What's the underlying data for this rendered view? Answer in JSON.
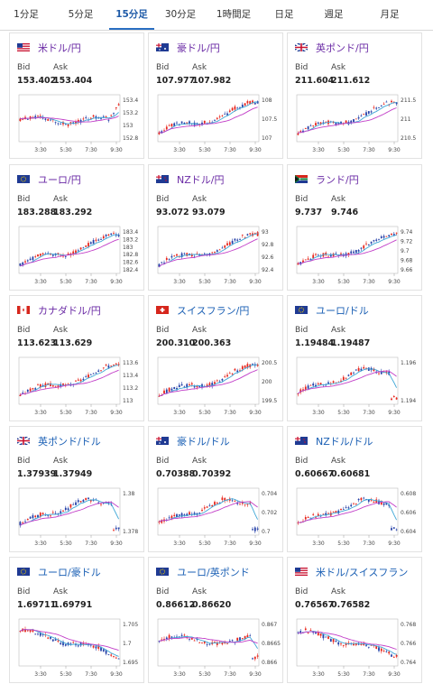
{
  "tabs": [
    {
      "label": "1分足",
      "active": false
    },
    {
      "label": "5分足",
      "active": false
    },
    {
      "label": "15分足",
      "active": true
    },
    {
      "label": "30分足",
      "active": false
    },
    {
      "label": "1時間足",
      "active": false
    },
    {
      "label": "日足",
      "active": false
    },
    {
      "label": "週足",
      "active": false
    },
    {
      "label": "月足",
      "active": false
    }
  ],
  "bid_label": "Bid",
  "ask_label": "Ask",
  "x_ticks": [
    "3:30",
    "5:30",
    "7:30",
    "9:30"
  ],
  "colors": {
    "up": "#e8261c",
    "down": "#2540a8",
    "ma_fast": "#3fa7d6",
    "ma_slow": "#c23fc8",
    "accent": "#1a5fb4"
  },
  "cards": [
    {
      "pair": "米ドル/円",
      "flag": "us",
      "bid": "153.402",
      "ask": "153.404",
      "y_ticks": [
        "153.4",
        "153.2",
        "153",
        "152.8"
      ],
      "trend": "up_spike",
      "purple": true
    },
    {
      "pair": "豪ドル/円",
      "flag": "au",
      "bid": "107.977",
      "ask": "107.982",
      "y_ticks": [
        "108",
        "107.5",
        "107"
      ],
      "trend": "up",
      "purple": true
    },
    {
      "pair": "英ポンド/円",
      "flag": "gb",
      "bid": "211.604",
      "ask": "211.612",
      "y_ticks": [
        "211.5",
        "211",
        "210.5"
      ],
      "trend": "up",
      "purple": true
    },
    {
      "pair": "ユーロ/円",
      "flag": "eu",
      "bid": "183.288",
      "ask": "183.292",
      "y_ticks": [
        "183.4",
        "183.2",
        "183",
        "182.8",
        "182.6",
        "182.4"
      ],
      "trend": "up",
      "purple": true
    },
    {
      "pair": "NZドル/円",
      "flag": "nz",
      "bid": "93.072",
      "ask": "93.079",
      "y_ticks": [
        "93",
        "92.8",
        "92.6",
        "92.4"
      ],
      "trend": "up",
      "purple": true
    },
    {
      "pair": "ランド/円",
      "flag": "za",
      "bid": "9.737",
      "ask": "9.746",
      "y_ticks": [
        "9.74",
        "9.72",
        "9.7",
        "9.68",
        "9.66"
      ],
      "trend": "up",
      "purple": true
    },
    {
      "pair": "カナダドル/円",
      "flag": "ca",
      "bid": "113.623",
      "ask": "113.629",
      "y_ticks": [
        "113.6",
        "113.4",
        "113.2",
        "113"
      ],
      "trend": "up",
      "purple": true
    },
    {
      "pair": "スイスフラン/円",
      "flag": "ch",
      "bid": "200.310",
      "ask": "200.363",
      "y_ticks": [
        "200.5",
        "200",
        "199.5"
      ],
      "trend": "up",
      "purple": false
    },
    {
      "pair": "ユーロ/ドル",
      "flag": "eu",
      "bid": "1.19484",
      "ask": "1.19487",
      "y_ticks": [
        "1.196",
        "1.194"
      ],
      "trend": "up_drop",
      "purple": false
    },
    {
      "pair": "英ポンド/ドル",
      "flag": "gb",
      "bid": "1.37939",
      "ask": "1.37949",
      "y_ticks": [
        "1.38",
        "1.378"
      ],
      "trend": "up_drop",
      "purple": false
    },
    {
      "pair": "豪ドル/ドル",
      "flag": "au",
      "bid": "0.70388",
      "ask": "0.70392",
      "y_ticks": [
        "0.704",
        "0.702",
        "0.7"
      ],
      "trend": "up_drop",
      "purple": false
    },
    {
      "pair": "NZドル/ドル",
      "flag": "nz",
      "bid": "0.60667",
      "ask": "0.60681",
      "y_ticks": [
        "0.608",
        "0.606",
        "0.604"
      ],
      "trend": "up_drop",
      "purple": false
    },
    {
      "pair": "ユーロ/豪ドル",
      "flag": "eu",
      "bid": "1.69711",
      "ask": "1.69791",
      "y_ticks": [
        "1.705",
        "1.7",
        "1.695"
      ],
      "trend": "down",
      "purple": false
    },
    {
      "pair": "ユーロ/英ポンド",
      "flag": "eu",
      "bid": "0.86612",
      "ask": "0.86620",
      "y_ticks": [
        "0.867",
        "0.8665",
        "0.866"
      ],
      "trend": "flat_drop",
      "purple": false
    },
    {
      "pair": "米ドル/スイスフラン",
      "flag": "us",
      "bid": "0.76567",
      "ask": "0.76582",
      "y_ticks": [
        "0.768",
        "0.766",
        "0.764"
      ],
      "trend": "down",
      "purple": false
    }
  ]
}
